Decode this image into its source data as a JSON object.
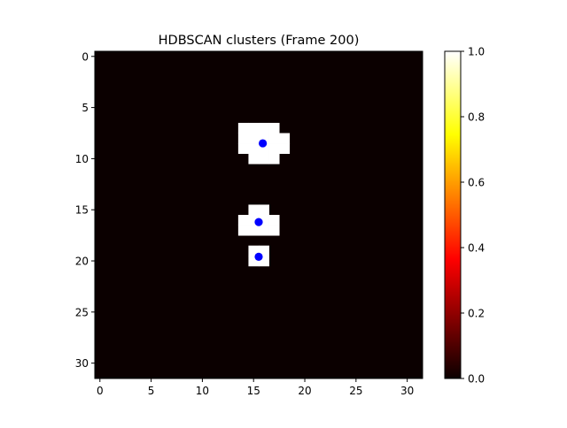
{
  "chart_data": {
    "type": "heatmap",
    "title": "HDBSCAN clusters (Frame 200)",
    "xlabel": "",
    "ylabel": "",
    "grid_size": [
      32,
      32
    ],
    "xlim": [
      -0.5,
      31.5
    ],
    "ylim": [
      31.5,
      -0.5
    ],
    "x_ticks": [
      0,
      5,
      10,
      15,
      20,
      25,
      30
    ],
    "y_ticks": [
      0,
      5,
      10,
      15,
      20,
      25,
      30
    ],
    "colormap": "hot",
    "colorbar": {
      "min": 0.0,
      "max": 1.0,
      "ticks": [
        0.0,
        0.2,
        0.4,
        0.6,
        0.8,
        1.0
      ],
      "tick_labels": [
        "0.0",
        "0.2",
        "0.4",
        "0.6",
        "0.8",
        "1.0"
      ]
    },
    "background_value": 0,
    "active_cells": [
      {
        "row": 7,
        "col": 14
      },
      {
        "row": 7,
        "col": 15
      },
      {
        "row": 7,
        "col": 16
      },
      {
        "row": 7,
        "col": 17
      },
      {
        "row": 8,
        "col": 14
      },
      {
        "row": 8,
        "col": 15
      },
      {
        "row": 8,
        "col": 16
      },
      {
        "row": 8,
        "col": 17
      },
      {
        "row": 8,
        "col": 18
      },
      {
        "row": 9,
        "col": 14
      },
      {
        "row": 9,
        "col": 15
      },
      {
        "row": 9,
        "col": 16
      },
      {
        "row": 9,
        "col": 17
      },
      {
        "row": 9,
        "col": 18
      },
      {
        "row": 10,
        "col": 15
      },
      {
        "row": 10,
        "col": 16
      },
      {
        "row": 10,
        "col": 17
      },
      {
        "row": 15,
        "col": 15
      },
      {
        "row": 15,
        "col": 16
      },
      {
        "row": 16,
        "col": 14
      },
      {
        "row": 16,
        "col": 15
      },
      {
        "row": 16,
        "col": 16
      },
      {
        "row": 16,
        "col": 17
      },
      {
        "row": 17,
        "col": 14
      },
      {
        "row": 17,
        "col": 15
      },
      {
        "row": 17,
        "col": 16
      },
      {
        "row": 17,
        "col": 17
      },
      {
        "row": 19,
        "col": 15
      },
      {
        "row": 19,
        "col": 16
      },
      {
        "row": 20,
        "col": 15
      },
      {
        "row": 20,
        "col": 16
      }
    ],
    "active_value": 1,
    "centroids": [
      {
        "x": 15.9,
        "y": 8.5
      },
      {
        "x": 15.5,
        "y": 16.2
      },
      {
        "x": 15.5,
        "y": 19.6
      }
    ],
    "centroid_color": "#0000ff",
    "colors": {
      "low": "#0b0000",
      "high": "#ffffff"
    }
  }
}
